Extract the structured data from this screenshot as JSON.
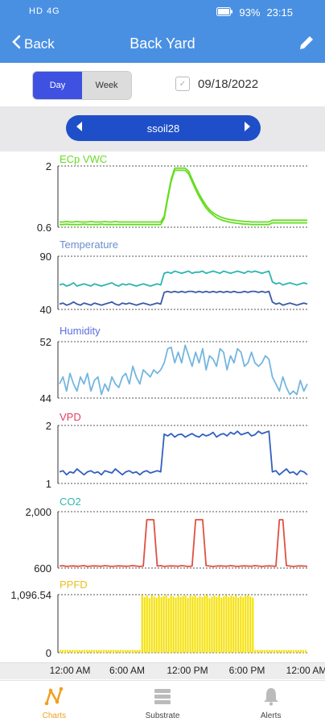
{
  "status": {
    "left_icons": "HD 4G",
    "battery": "93%",
    "time": "23:15"
  },
  "header": {
    "back_label": "Back",
    "title": "Back Yard"
  },
  "range": {
    "day_label": "Day",
    "week_label": "Week",
    "date": "09/18/2022"
  },
  "sensor": {
    "name": "ssoil28"
  },
  "time_labels": [
    "12:00 AM",
    "6:00 AM",
    "12:00 PM",
    "6:00 PM",
    "12:00 AM"
  ],
  "tabs": [
    {
      "label": "Charts",
      "icon": "charts-icon"
    },
    {
      "label": "Substrate",
      "icon": "substrate-icon"
    },
    {
      "label": "Alerts",
      "icon": "bell-icon"
    }
  ],
  "chart_data": [
    {
      "type": "line",
      "title": "ECp VWC",
      "ylim": [
        0.6,
        2
      ],
      "ytick_labels": [
        "2",
        "0.6"
      ],
      "color": "#66dd22",
      "series": [
        {
          "values": [
            0.72,
            0.72,
            0.73,
            0.72,
            0.72,
            0.73,
            0.72,
            0.72,
            0.72,
            0.73,
            0.72,
            0.72,
            0.72,
            0.73,
            0.72,
            0.72,
            0.73,
            0.72,
            0.72,
            0.72,
            0.72,
            0.72,
            0.72,
            0.72,
            0.72,
            0.72,
            0.72,
            0.72,
            0.72,
            0.72,
            0.85,
            1.3,
            1.7,
            1.95,
            1.95,
            1.95,
            1.95,
            1.88,
            1.7,
            1.52,
            1.36,
            1.22,
            1.1,
            1.0,
            0.93,
            0.88,
            0.84,
            0.81,
            0.79,
            0.77,
            0.76,
            0.75,
            0.74,
            0.73,
            0.73,
            0.72,
            0.72,
            0.72,
            0.72,
            0.72,
            0.72,
            0.76,
            0.76,
            0.76,
            0.76,
            0.76,
            0.76,
            0.76,
            0.76,
            0.76,
            0.76,
            0.76
          ]
        },
        {
          "values": [
            0.66,
            0.66,
            0.67,
            0.66,
            0.66,
            0.66,
            0.66,
            0.67,
            0.66,
            0.66,
            0.66,
            0.66,
            0.67,
            0.66,
            0.66,
            0.66,
            0.66,
            0.66,
            0.66,
            0.66,
            0.66,
            0.66,
            0.66,
            0.66,
            0.66,
            0.66,
            0.66,
            0.66,
            0.66,
            0.66,
            0.8,
            1.25,
            1.65,
            1.9,
            1.9,
            1.9,
            1.9,
            1.82,
            1.64,
            1.46,
            1.3,
            1.16,
            1.04,
            0.95,
            0.88,
            0.82,
            0.78,
            0.75,
            0.73,
            0.71,
            0.7,
            0.69,
            0.68,
            0.67,
            0.67,
            0.66,
            0.66,
            0.66,
            0.66,
            0.66,
            0.66,
            0.7,
            0.7,
            0.7,
            0.7,
            0.7,
            0.7,
            0.7,
            0.7,
            0.7,
            0.7,
            0.7
          ]
        }
      ]
    },
    {
      "type": "line",
      "title": "Temperature",
      "ylim": [
        40,
        90
      ],
      "ytick_labels": [
        "90",
        "40"
      ],
      "color": "#6a8fcc",
      "series": [
        {
          "color": "#2ab5b0",
          "values": [
            63,
            64,
            62,
            63,
            65,
            62,
            63,
            64,
            63,
            62,
            64,
            63,
            62,
            63,
            64,
            65,
            63,
            62,
            64,
            63,
            64,
            63,
            62,
            63,
            64,
            63,
            62,
            63,
            64,
            63,
            74,
            75,
            74,
            76,
            75,
            74,
            75,
            76,
            74,
            75,
            75,
            76,
            74,
            75,
            76,
            75,
            74,
            76,
            75,
            74,
            75,
            76,
            75,
            74,
            76,
            75,
            76,
            75,
            74,
            75,
            76,
            66,
            64,
            65,
            63,
            64,
            65,
            64,
            63,
            64,
            65,
            64
          ]
        },
        {
          "color": "#3b5aa8",
          "values": [
            45,
            46,
            44,
            45,
            47,
            45,
            44,
            46,
            45,
            44,
            46,
            45,
            44,
            45,
            46,
            47,
            45,
            44,
            46,
            45,
            46,
            45,
            44,
            45,
            46,
            45,
            44,
            45,
            46,
            45,
            56,
            57,
            56,
            57,
            56,
            57,
            56,
            57,
            57,
            56,
            57,
            56,
            57,
            56,
            57,
            56,
            57,
            56,
            57,
            56,
            57,
            56,
            56,
            57,
            56,
            57,
            57,
            56,
            57,
            56,
            57,
            47,
            45,
            46,
            44,
            45,
            46,
            45,
            44,
            45,
            46,
            45
          ]
        }
      ]
    },
    {
      "type": "line",
      "title": "Humidity",
      "ylim": [
        44,
        52
      ],
      "ytick_labels": [
        "52",
        "44"
      ],
      "color": "#5b6ee0",
      "series": [
        {
          "color": "#74b6e0",
          "values": [
            46,
            47,
            45,
            47.5,
            46,
            45,
            47,
            46,
            47.5,
            45,
            46.5,
            47,
            44.5,
            46,
            45,
            47,
            46,
            45.5,
            47,
            47.5,
            46,
            48.5,
            47,
            46,
            48,
            47.5,
            47,
            48,
            47.5,
            48,
            49,
            51,
            51.2,
            49,
            50.5,
            49,
            51.5,
            50,
            48.5,
            50.5,
            49,
            51,
            48,
            50,
            49.5,
            48.5,
            51,
            50.5,
            48,
            50,
            49,
            51,
            50.5,
            48.5,
            49,
            50.5,
            49,
            48.5,
            49,
            50,
            49.5,
            47,
            46,
            45,
            47,
            45.5,
            44.5,
            45,
            44.5,
            46.5,
            45,
            46
          ]
        }
      ]
    },
    {
      "type": "line",
      "title": "VPD",
      "ylim": [
        1,
        2
      ],
      "ytick_labels": [
        "2",
        "1"
      ],
      "color": "#e04060",
      "series": [
        {
          "color": "#3060c0",
          "values": [
            1.2,
            1.22,
            1.15,
            1.2,
            1.18,
            1.25,
            1.2,
            1.15,
            1.2,
            1.22,
            1.18,
            1.2,
            1.15,
            1.22,
            1.2,
            1.18,
            1.25,
            1.2,
            1.15,
            1.2,
            1.22,
            1.18,
            1.2,
            1.15,
            1.2,
            1.22,
            1.18,
            1.2,
            1.22,
            1.2,
            1.85,
            1.82,
            1.86,
            1.8,
            1.84,
            1.85,
            1.8,
            1.83,
            1.86,
            1.82,
            1.8,
            1.85,
            1.82,
            1.84,
            1.88,
            1.8,
            1.84,
            1.86,
            1.82,
            1.88,
            1.85,
            1.9,
            1.84,
            1.86,
            1.88,
            1.82,
            1.84,
            1.9,
            1.86,
            1.88,
            1.9,
            1.2,
            1.22,
            1.15,
            1.2,
            1.25,
            1.18,
            1.2,
            1.15,
            1.22,
            1.2,
            1.15
          ]
        }
      ]
    },
    {
      "type": "line",
      "title": "CO2",
      "ylim": [
        600,
        2000
      ],
      "ytick_labels": [
        "2,000",
        "600"
      ],
      "color": "#30b8b0",
      "series": [
        {
          "color": "#e05040",
          "values": [
            650,
            660,
            640,
            650,
            655,
            645,
            650,
            660,
            640,
            650,
            655,
            650,
            645,
            660,
            650,
            640,
            650,
            655,
            650,
            645,
            650,
            660,
            650,
            640,
            650,
            1800,
            1800,
            1800,
            650,
            660,
            640,
            650,
            655,
            650,
            645,
            660,
            650,
            640,
            650,
            1800,
            1800,
            1800,
            660,
            650,
            640,
            650,
            655,
            650,
            645,
            660,
            650,
            640,
            650,
            655,
            650,
            645,
            660,
            650,
            640,
            650,
            655,
            650,
            645,
            1800,
            1800,
            660,
            650,
            640,
            650,
            655,
            650,
            645
          ]
        }
      ]
    },
    {
      "type": "bar",
      "title": "PPFD",
      "ylim": [
        0,
        1096.54
      ],
      "ytick_labels": [
        "1,096.54",
        "0"
      ],
      "color": "#e8c020",
      "series": [
        {
          "color": "#f5e000",
          "values": [
            50,
            50,
            50,
            50,
            50,
            50,
            50,
            50,
            50,
            50,
            50,
            50,
            50,
            50,
            50,
            50,
            50,
            50,
            50,
            50,
            50,
            50,
            50,
            50,
            50,
            50,
            50,
            50,
            50,
            50,
            50,
            50,
            50,
            50,
            1090,
            1050,
            1080,
            1030,
            1090,
            1060,
            1040,
            1085,
            1050,
            1070,
            1090,
            1030,
            1080,
            1060,
            1040,
            1090,
            1050,
            1070,
            1085,
            1035,
            1080,
            1060,
            1090,
            1040,
            1070,
            1050,
            1080,
            1090,
            1030,
            1060,
            1080,
            1050,
            1090,
            1040,
            1070,
            1085,
            1050,
            1080,
            1060,
            1090,
            1040,
            1070,
            1050,
            1080,
            1090,
            1060,
            1040,
            50,
            50,
            50,
            50,
            50,
            50,
            50,
            50,
            50,
            50,
            50,
            50,
            50,
            50,
            50,
            50,
            50,
            50,
            50,
            50,
            50,
            50
          ]
        }
      ]
    }
  ]
}
